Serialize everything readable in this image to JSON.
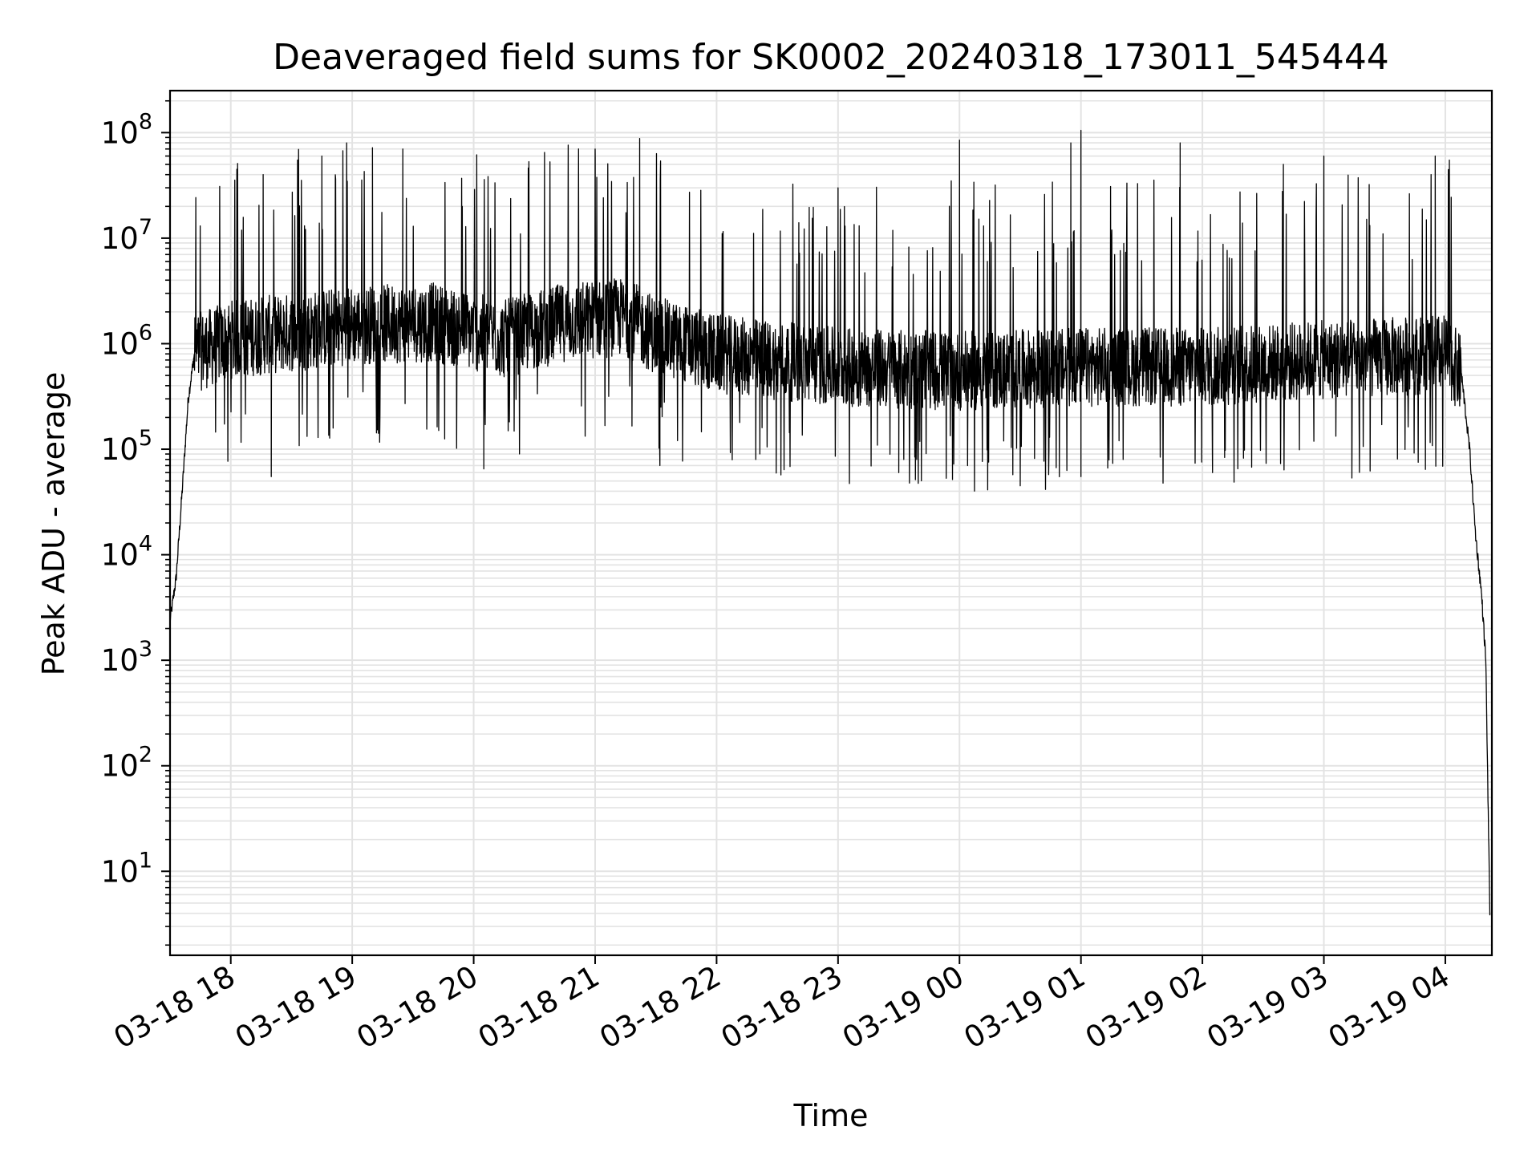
{
  "chart_data": {
    "type": "line",
    "title": "Deaveraged field sums for SK0002_20240318_173011_545444",
    "xlabel": "Time",
    "ylabel": "Peak ADU - average",
    "yscale": "log",
    "grid": true,
    "grid_color": "#e3e3e3",
    "line_color": "#000000",
    "xlim": [
      "2024-03-18 17:30",
      "2024-03-19 04:23"
    ],
    "ylim": [
      1.6,
      250000000
    ],
    "x_ticks": [
      {
        "value": "2024-03-18 18:00",
        "label": "03-18 18"
      },
      {
        "value": "2024-03-18 19:00",
        "label": "03-18 19"
      },
      {
        "value": "2024-03-18 20:00",
        "label": "03-18 20"
      },
      {
        "value": "2024-03-18 21:00",
        "label": "03-18 21"
      },
      {
        "value": "2024-03-18 22:00",
        "label": "03-18 22"
      },
      {
        "value": "2024-03-18 23:00",
        "label": "03-18 23"
      },
      {
        "value": "2024-03-19 00:00",
        "label": "03-19 00"
      },
      {
        "value": "2024-03-19 01:00",
        "label": "03-19 01"
      },
      {
        "value": "2024-03-19 02:00",
        "label": "03-19 02"
      },
      {
        "value": "2024-03-19 03:00",
        "label": "03-19 03"
      },
      {
        "value": "2024-03-19 04:00",
        "label": "03-19 04"
      }
    ],
    "y_ticks": [
      {
        "value": 10,
        "base": "10",
        "exp": "1"
      },
      {
        "value": 100,
        "base": "10",
        "exp": "2"
      },
      {
        "value": 1000,
        "base": "10",
        "exp": "3"
      },
      {
        "value": 10000,
        "base": "10",
        "exp": "4"
      },
      {
        "value": 100000,
        "base": "10",
        "exp": "5"
      },
      {
        "value": 1000000,
        "base": "10",
        "exp": "6"
      },
      {
        "value": 10000000,
        "base": "10",
        "exp": "7"
      },
      {
        "value": 100000000,
        "base": "10",
        "exp": "8"
      }
    ],
    "series": [
      {
        "style": "dense noisy line",
        "baseline_profile": [
          [
            "2024-03-18 17:30",
            2400
          ],
          [
            "2024-03-18 17:33",
            6000
          ],
          [
            "2024-03-18 17:36",
            40000
          ],
          [
            "2024-03-18 17:39",
            300000
          ],
          [
            "2024-03-18 17:42",
            800000
          ],
          [
            "2024-03-18 18:00",
            1100000
          ],
          [
            "2024-03-18 19:00",
            1500000
          ],
          [
            "2024-03-18 19:40",
            1600000
          ],
          [
            "2024-03-18 20:15",
            1100000
          ],
          [
            "2024-03-18 20:45",
            1600000
          ],
          [
            "2024-03-18 21:15",
            1800000
          ],
          [
            "2024-03-18 21:30",
            1200000
          ],
          [
            "2024-03-18 22:00",
            800000
          ],
          [
            "2024-03-18 23:00",
            600000
          ],
          [
            "2024-03-19 00:00",
            550000
          ],
          [
            "2024-03-19 01:00",
            600000
          ],
          [
            "2024-03-19 02:00",
            600000
          ],
          [
            "2024-03-19 03:00",
            700000
          ],
          [
            "2024-03-19 04:00",
            800000
          ],
          [
            "2024-03-19 04:08",
            500000
          ],
          [
            "2024-03-19 04:12",
            100000
          ],
          [
            "2024-03-19 04:15",
            15000
          ],
          [
            "2024-03-19 04:18",
            4000
          ],
          [
            "2024-03-19 04:20",
            1000
          ],
          [
            "2024-03-19 04:22",
            4
          ]
        ],
        "peaks": [
          [
            "2024-03-18 18:03",
            45000000
          ],
          [
            "2024-03-18 18:16",
            40000000
          ],
          [
            "2024-03-18 18:33",
            55000000
          ],
          [
            "2024-03-18 18:45",
            60000000
          ],
          [
            "2024-03-18 19:10",
            72000000
          ],
          [
            "2024-03-18 19:25",
            70000000
          ],
          [
            "2024-03-18 20:35",
            65000000
          ],
          [
            "2024-03-18 21:00",
            70000000
          ],
          [
            "2024-03-18 21:22",
            88000000
          ],
          [
            "2024-03-18 23:00",
            30000000
          ],
          [
            "2024-03-19 00:00",
            85000000
          ],
          [
            "2024-03-19 00:55",
            80000000
          ],
          [
            "2024-03-19 01:00",
            105000000
          ],
          [
            "2024-03-19 01:49",
            80000000
          ],
          [
            "2024-03-19 02:40",
            50000000
          ],
          [
            "2024-03-19 03:00",
            60000000
          ],
          [
            "2024-03-19 03:55",
            60000000
          ],
          [
            "2024-03-19 04:02",
            55000000
          ]
        ],
        "troughs": [
          [
            "2024-03-18 18:20",
            55000
          ],
          [
            "2024-03-18 20:05",
            65000
          ],
          [
            "2024-03-18 21:32",
            70000
          ],
          [
            "2024-03-18 23:30",
            60000
          ],
          [
            "2024-03-19 00:30",
            45000
          ],
          [
            "2024-03-19 01:00",
            55000
          ],
          [
            "2024-03-19 02:05",
            60000
          ],
          [
            "2024-03-19 04:22",
            4
          ]
        ]
      }
    ]
  }
}
